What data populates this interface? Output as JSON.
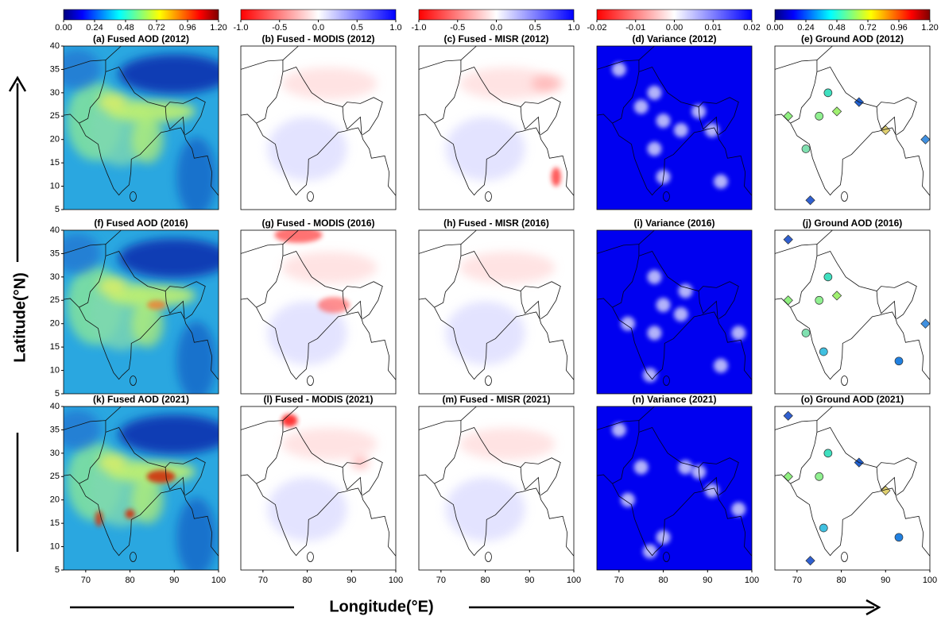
{
  "figure": {
    "colorbars": [
      {
        "cmap": "jet",
        "lim": [
          0,
          1.2
        ],
        "ticks": [
          {
            "value": 0,
            "label": "0.00"
          },
          {
            "value": 0.24,
            "label": "0.24"
          },
          {
            "value": 0.48,
            "label": "0.48"
          },
          {
            "value": 0.72,
            "label": "0.72"
          },
          {
            "value": 0.96,
            "label": "0.96"
          },
          {
            "value": 1.2,
            "label": "1.20"
          }
        ]
      },
      {
        "cmap": "bwr",
        "lim": [
          -1,
          1
        ],
        "ticks": [
          {
            "value": -1,
            "label": "-1.0"
          },
          -0.5,
          {
            "value": 0,
            "label": "0.0"
          },
          0.5,
          {
            "value": 1,
            "label": "1.0"
          }
        ]
      },
      {
        "cmap": "bwr",
        "lim": [
          -1,
          1
        ],
        "ticks": [
          {
            "value": -1,
            "label": "-1.0"
          },
          -0.5,
          {
            "value": 0,
            "label": "0.0"
          },
          0.5,
          {
            "value": 1,
            "label": "1.0"
          }
        ]
      },
      {
        "cmap": "bwr",
        "lim": [
          -0.02,
          0.02
        ],
        "ticks": [
          -0.02,
          -0.01,
          {
            "value": 0,
            "label": "0.00"
          },
          0.01,
          0.02
        ]
      },
      {
        "cmap": "jet",
        "lim": [
          0,
          1.2
        ],
        "ticks": [
          {
            "value": 0,
            "label": "0.00"
          },
          {
            "value": 0.24,
            "label": "0.24"
          },
          {
            "value": 0.48,
            "label": "0.48"
          },
          {
            "value": 0.72,
            "label": "0.72"
          },
          {
            "value": 0.96,
            "label": "0.96"
          },
          {
            "value": 1.2,
            "label": "1.20"
          }
        ]
      }
    ],
    "panels": [
      {
        "title": "(a) Fused AOD (2012)",
        "kind": "aod"
      },
      {
        "title": "(b) Fused - MODIS (2012)",
        "kind": "diff"
      },
      {
        "title": "(c) Fused - MISR (2012)",
        "kind": "diff"
      },
      {
        "title": "(d) Variance (2012)",
        "kind": "var"
      },
      {
        "title": "(e) Ground AOD (2012)",
        "kind": "ground"
      },
      {
        "title": "(f) Fused AOD (2016)",
        "kind": "aod"
      },
      {
        "title": "(g) Fused - MODIS (2016)",
        "kind": "diff"
      },
      {
        "title": "(h) Fused - MISR (2016)",
        "kind": "diff"
      },
      {
        "title": "(i) Variance (2016)",
        "kind": "var"
      },
      {
        "title": "(j) Ground AOD (2016)",
        "kind": "ground"
      },
      {
        "title": "(k) Fused AOD (2021)",
        "kind": "aod"
      },
      {
        "title": "(l) Fused - MODIS (2021)",
        "kind": "diff"
      },
      {
        "title": "(m) Fused - MISR (2021)",
        "kind": "diff"
      },
      {
        "title": "(n) Variance (2021)",
        "kind": "var"
      },
      {
        "title": "(o) Ground AOD (2021)",
        "kind": "ground"
      }
    ],
    "xlim": [
      65,
      100
    ],
    "ylim": [
      5,
      40
    ],
    "xticks": [
      70,
      80,
      90,
      100
    ],
    "yticks": [
      5,
      10,
      15,
      20,
      25,
      30,
      35,
      40
    ],
    "y_label": "Latitude(°N)",
    "x_label": "Longitude(°E)"
  }
}
